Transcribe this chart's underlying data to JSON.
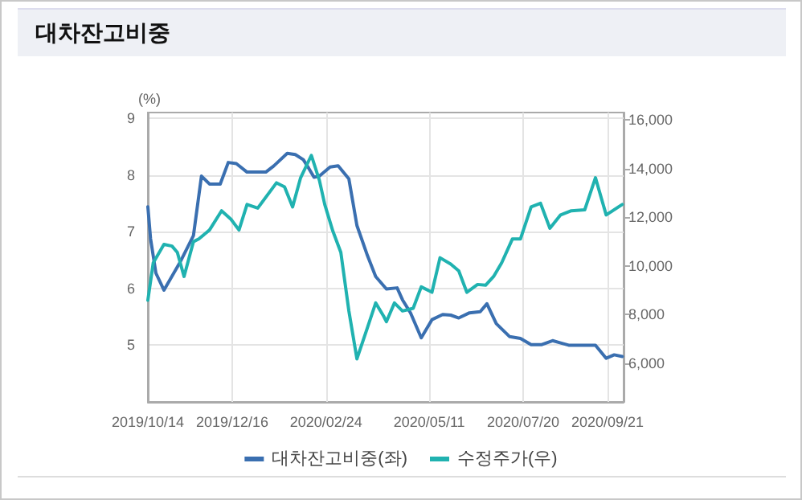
{
  "chart_data": {
    "type": "line",
    "title": "대차잔고비중",
    "ylabel": "(%)",
    "xlim": [
      "2019-10-14",
      "2020-10-03"
    ],
    "xticks": [
      {
        "value": "2019-10-14",
        "label": "2019/10/14"
      },
      {
        "value": "2019-12-16",
        "label": "2019/12/16"
      },
      {
        "value": "2020-02-24",
        "label": "2020/02/24"
      },
      {
        "value": "2020-05-11",
        "label": "2020/05/11"
      },
      {
        "value": "2020-07-20",
        "label": "2020/07/20"
      },
      {
        "value": "2020-09-21",
        "label": "2020/09/21"
      }
    ],
    "ylim": [
      4,
      9.1
    ],
    "yticks": [
      5,
      6,
      7,
      8,
      9
    ],
    "y2lim": [
      4400,
      16300
    ],
    "y2ticks": [
      {
        "value": 6000,
        "label": "6,000"
      },
      {
        "value": 8000,
        "label": "8,000"
      },
      {
        "value": 10000,
        "label": "10,000"
      },
      {
        "value": 12000,
        "label": "12,000"
      },
      {
        "value": 14000,
        "label": "14,000"
      },
      {
        "value": 16000,
        "label": "16,000"
      }
    ],
    "grid": true,
    "legend": "bottom",
    "marker": "none",
    "line_style": "solid",
    "series": [
      {
        "name": "대차잔고비중(좌)",
        "color": "#3a6fb0",
        "x": [
          "2019-10-14",
          "2019-10-16",
          "2019-10-20",
          "2019-10-26",
          "2019-11-07",
          "2019-11-17",
          "2019-11-23",
          "2019-11-29",
          "2019-12-07",
          "2019-12-13",
          "2019-12-19",
          "2019-12-27",
          "2020-01-10",
          "2020-01-16",
          "2020-01-26",
          "2020-02-01",
          "2020-02-07",
          "2020-02-11",
          "2020-02-15",
          "2020-02-19",
          "2020-02-27",
          "2020-03-04",
          "2020-03-12",
          "2020-03-18",
          "2020-03-26",
          "2020-04-01",
          "2020-04-09",
          "2020-04-17",
          "2020-04-21",
          "2020-04-27",
          "2020-05-05",
          "2020-05-13",
          "2020-05-21",
          "2020-05-27",
          "2020-06-02",
          "2020-06-10",
          "2020-06-18",
          "2020-06-23",
          "2020-06-30",
          "2020-07-10",
          "2020-07-18",
          "2020-07-26",
          "2020-08-03",
          "2020-08-11",
          "2020-08-17",
          "2020-08-23",
          "2020-09-12",
          "2020-09-20",
          "2020-09-26",
          "2020-10-02"
        ],
        "values": [
          7.44,
          6.88,
          6.27,
          5.97,
          6.46,
          6.93,
          7.98,
          7.84,
          7.84,
          8.22,
          8.2,
          8.05,
          8.05,
          8.16,
          8.38,
          8.36,
          8.27,
          8.12,
          7.96,
          7.98,
          8.14,
          8.16,
          7.93,
          7.11,
          6.57,
          6.21,
          5.99,
          6.01,
          5.8,
          5.57,
          5.13,
          5.45,
          5.54,
          5.53,
          5.48,
          5.57,
          5.59,
          5.73,
          5.38,
          5.15,
          5.12,
          5.01,
          5.01,
          5.08,
          5.04,
          5.0,
          5.0,
          4.77,
          4.83,
          4.8
        ]
      },
      {
        "name": "수정주가(우)",
        "color": "#20b2b0",
        "axis": "y2",
        "x": [
          "2019-10-14",
          "2019-10-18",
          "2019-10-26",
          "2019-11-01",
          "2019-11-05",
          "2019-11-10",
          "2019-11-17",
          "2019-11-21",
          "2019-11-29",
          "2019-12-08",
          "2019-12-15",
          "2019-12-21",
          "2019-12-27",
          "2020-01-04",
          "2020-01-18",
          "2020-01-24",
          "2020-01-30",
          "2020-02-05",
          "2020-02-13",
          "2020-02-19",
          "2020-02-23",
          "2020-02-29",
          "2020-03-06",
          "2020-03-12",
          "2020-03-18",
          "2020-03-26",
          "2020-04-01",
          "2020-04-07",
          "2020-04-09",
          "2020-04-15",
          "2020-04-21",
          "2020-04-29",
          "2020-05-05",
          "2020-05-13",
          "2020-05-19",
          "2020-05-27",
          "2020-06-02",
          "2020-06-08",
          "2020-06-16",
          "2020-06-22",
          "2020-06-28",
          "2020-07-04",
          "2020-07-12",
          "2020-07-18",
          "2020-07-26",
          "2020-08-02",
          "2020-08-09",
          "2020-08-17",
          "2020-08-25",
          "2020-09-04",
          "2020-09-12",
          "2020-09-20",
          "2020-10-02"
        ],
        "values": [
          8580,
          10120,
          10880,
          10810,
          10550,
          9560,
          10990,
          11100,
          11470,
          12260,
          11910,
          11470,
          12520,
          12370,
          13410,
          13240,
          12420,
          13620,
          14540,
          13510,
          12520,
          11430,
          10550,
          8140,
          6170,
          7480,
          8470,
          7920,
          7700,
          8470,
          8140,
          8250,
          9130,
          8910,
          10330,
          10070,
          9790,
          8910,
          9230,
          9200,
          9560,
          10120,
          11100,
          11100,
          12420,
          12570,
          11540,
          12090,
          12260,
          12300,
          13620,
          12090,
          12520
        ]
      }
    ]
  }
}
